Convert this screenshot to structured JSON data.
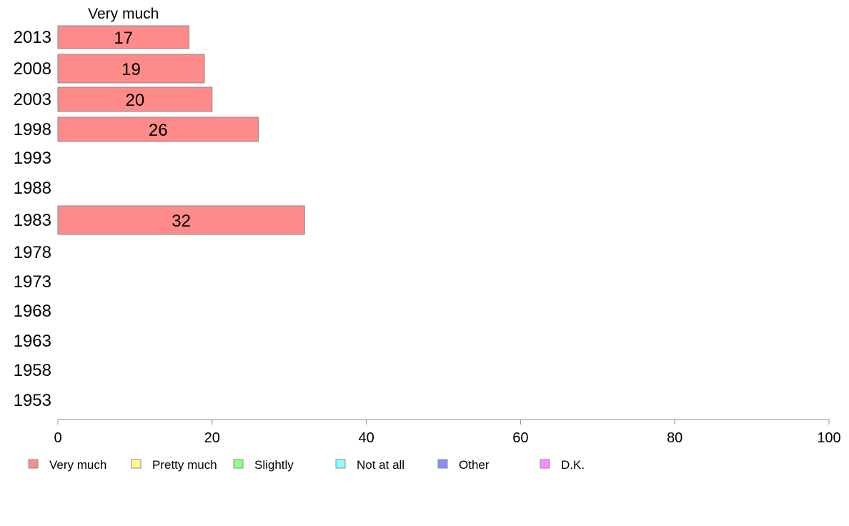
{
  "chart_data": {
    "type": "bar",
    "orientation": "horizontal",
    "stacked": true,
    "categories": [
      "2013",
      "2008",
      "2003",
      "1998",
      "1993",
      "1988",
      "1983",
      "1978",
      "1973",
      "1968",
      "1963",
      "1958",
      "1953"
    ],
    "series": [
      {
        "name": "Very much",
        "color": "#ff8a8a",
        "values": [
          17,
          19,
          20,
          26,
          null,
          null,
          32,
          null,
          null,
          null,
          null,
          null,
          null
        ]
      },
      {
        "name": "Pretty much",
        "color": "#ffff8a",
        "values": [
          null,
          null,
          null,
          null,
          null,
          null,
          null,
          null,
          null,
          null,
          null,
          null,
          null
        ]
      },
      {
        "name": "Slightly",
        "color": "#8aff8a",
        "values": [
          null,
          null,
          null,
          null,
          null,
          null,
          null,
          null,
          null,
          null,
          null,
          null,
          null
        ]
      },
      {
        "name": "Not at all",
        "color": "#8affff",
        "values": [
          null,
          null,
          null,
          null,
          null,
          null,
          null,
          null,
          null,
          null,
          null,
          null,
          null
        ]
      },
      {
        "name": "Other",
        "color": "#8a8aff",
        "values": [
          null,
          null,
          null,
          null,
          null,
          null,
          null,
          null,
          null,
          null,
          null,
          null,
          null
        ]
      },
      {
        "name": "D.K.",
        "color": "#ff8aff",
        "values": [
          null,
          null,
          null,
          null,
          null,
          null,
          null,
          null,
          null,
          null,
          null,
          null,
          null
        ]
      }
    ],
    "column_header": "Very much",
    "xlim": [
      0,
      100
    ],
    "xticks": [
      0,
      20,
      40,
      60,
      80,
      100
    ],
    "grid": false,
    "legend_position": "bottom"
  }
}
